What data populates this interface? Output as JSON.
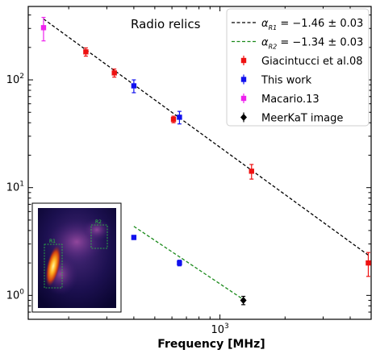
{
  "chart_data": {
    "type": "scatter",
    "title": "",
    "annotation": "Radio relics",
    "xlabel": "Frequency [MHz]",
    "ylabel": "",
    "xscale": "log",
    "yscale": "log",
    "xlim": [
      130,
      5000
    ],
    "ylim": [
      0.6,
      480
    ],
    "x_tick_labels": [
      {
        "value": 1000,
        "base": "10",
        "exp": "3"
      }
    ],
    "y_tick_labels": [
      {
        "value": 1,
        "base": "10",
        "exp": "0"
      },
      {
        "value": 10,
        "base": "10",
        "exp": "1"
      },
      {
        "value": 100,
        "base": "10",
        "exp": "2"
      }
    ],
    "grid": false,
    "legend_position": "top-right",
    "fits": [
      {
        "name_prefix": "α",
        "name_sub": "R1",
        "name_value": " = −1.46 ± 0.03",
        "color": "#000000",
        "x_range": [
          153,
          4850
        ],
        "anchor_x": 1000,
        "anchor_y": 23.7,
        "slope": -1.46
      },
      {
        "name_prefix": "α",
        "name_sub": "R2",
        "name_value": " = −1.34 ± 0.03",
        "color": "#1a8a1a",
        "x_range": [
          400,
          1283
        ],
        "anchor_x": 1000,
        "anchor_y": 1.28,
        "slope": -1.34
      }
    ],
    "series": [
      {
        "name": "Giacintucci et al.08",
        "color": "#ee1111",
        "marker": "square",
        "points": [
          {
            "x": 240,
            "y": 182,
            "err": 16
          },
          {
            "x": 325,
            "y": 116,
            "err": 10
          },
          {
            "x": 610,
            "y": 43,
            "err": 3
          },
          {
            "x": 1400,
            "y": 14.2,
            "err": 2.2
          },
          {
            "x": 4850,
            "y": 2.0,
            "err": 0.5
          }
        ]
      },
      {
        "name": "This work",
        "color": "#1111ee",
        "marker": "square",
        "points": [
          {
            "x": 400,
            "y": 88,
            "err": 12
          },
          {
            "x": 650,
            "y": 45,
            "err": 6
          },
          {
            "x": 400,
            "y": 3.45,
            "err": 0.15
          },
          {
            "x": 650,
            "y": 2.0,
            "err": 0.12
          }
        ]
      },
      {
        "name": "Macario.13",
        "color": "#ee22ee",
        "marker": "square",
        "points": [
          {
            "x": 153,
            "y": 305,
            "err": 75
          }
        ]
      },
      {
        "name": "MeerKaT image",
        "color": "#000000",
        "marker": "diamond",
        "points": [
          {
            "x": 1283,
            "y": 0.9,
            "err": 0.08
          }
        ]
      }
    ],
    "inset": {
      "region_labels": [
        "R1",
        "R2"
      ]
    }
  }
}
